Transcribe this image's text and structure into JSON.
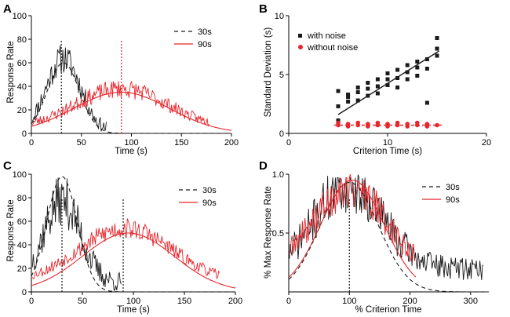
{
  "colors": {
    "black": "#1a1a1a",
    "red": "#e8262c",
    "axis": "#000000"
  },
  "chart_data": [
    {
      "panel": "A",
      "type": "line",
      "xlabel": "Time (s)",
      "ylabel": "Response Rate",
      "xlim": [
        0,
        200
      ],
      "ylim": [
        0,
        100
      ],
      "xticks": [
        0,
        50,
        100,
        150,
        200
      ],
      "yticks": [
        0,
        20,
        40,
        60,
        80,
        100
      ],
      "legend": [
        "30s",
        "90s"
      ],
      "series": [
        {
          "name": "30s",
          "color": "#1a1a1a",
          "dash": "5,4",
          "kind": "gauss_fit",
          "peak": 60,
          "center": 32,
          "sigma": 16,
          "base": 0
        },
        {
          "name": "30s",
          "color": "#1a1a1a",
          "kind": "noisy",
          "peak": 62,
          "center": 32,
          "sigma": 17,
          "base": 2,
          "noise": 13,
          "xrange": [
            1,
            75
          ],
          "seed": 11
        },
        {
          "name": "90s",
          "color": "#e8262c",
          "kind": "gauss_fit",
          "peak": 35,
          "center": 90,
          "sigma": 48,
          "base": 0
        },
        {
          "name": "90s",
          "color": "#e8262c",
          "kind": "noisy",
          "peak": 34,
          "center": 90,
          "sigma": 46,
          "base": 4,
          "noise": 8,
          "xrange": [
            1,
            178
          ],
          "seed": 23
        }
      ],
      "markers": [
        {
          "x": 30,
          "color": "#1a1a1a"
        },
        {
          "x": 90,
          "color": "#e8262c"
        }
      ]
    },
    {
      "panel": "B",
      "type": "scatter",
      "xlabel": "Criterion Time (s)",
      "ylabel": "Standard Deviation (s)",
      "xlim": [
        0,
        20
      ],
      "ylim": [
        0,
        10
      ],
      "xticks": [
        0,
        10,
        20
      ],
      "yticks": [
        0,
        5,
        10
      ],
      "legend": [
        "with noise",
        "without noise"
      ],
      "series": [
        {
          "name": "with noise",
          "color": "#1a1a1a",
          "marker": "square",
          "points": [
            [
              5,
              1.1
            ],
            [
              5,
              2.3
            ],
            [
              5,
              3.6
            ],
            [
              6,
              2.7
            ],
            [
              6,
              3.1
            ],
            [
              6,
              3.3
            ],
            [
              7,
              2.8
            ],
            [
              7,
              3.5
            ],
            [
              7,
              3.9
            ],
            [
              8,
              3.2
            ],
            [
              8,
              3.8
            ],
            [
              8,
              4.3
            ],
            [
              9,
              3.4
            ],
            [
              9,
              4.0
            ],
            [
              9,
              4.6
            ],
            [
              10,
              4.1
            ],
            [
              10,
              4.6
            ],
            [
              10,
              5.1
            ],
            [
              11,
              3.9
            ],
            [
              11,
              4.7
            ],
            [
              11,
              5.4
            ],
            [
              12,
              4.6
            ],
            [
              12,
              5.2
            ],
            [
              12,
              5.8
            ],
            [
              13,
              4.9
            ],
            [
              13,
              5.6
            ],
            [
              13,
              6.1
            ],
            [
              14,
              2.6
            ],
            [
              14,
              5.5
            ],
            [
              14,
              6.3
            ],
            [
              15,
              6.6
            ],
            [
              15,
              7.2
            ],
            [
              15,
              8.1
            ]
          ]
        },
        {
          "name": "without noise",
          "color": "#e8262c",
          "marker": "circle",
          "points": [
            [
              5,
              0.7
            ],
            [
              5,
              0.9
            ],
            [
              6,
              0.6
            ],
            [
              6,
              0.8
            ],
            [
              7,
              0.7
            ],
            [
              7,
              0.9
            ],
            [
              8,
              0.6
            ],
            [
              8,
              0.8
            ],
            [
              9,
              0.7
            ],
            [
              9,
              0.9
            ],
            [
              10,
              0.6
            ],
            [
              10,
              0.8
            ],
            [
              11,
              0.7
            ],
            [
              11,
              0.9
            ],
            [
              12,
              0.6
            ],
            [
              12,
              0.8
            ],
            [
              13,
              0.7
            ],
            [
              13,
              0.9
            ],
            [
              14,
              0.6
            ],
            [
              14,
              0.8
            ],
            [
              15,
              0.7
            ]
          ]
        }
      ],
      "fits": [
        {
          "series": "with noise",
          "color": "#1a1a1a",
          "dash": "",
          "x": [
            5,
            15.2
          ],
          "y": [
            1.6,
            7.0
          ]
        },
        {
          "series": "without noise",
          "color": "#e8262c",
          "dash": "4,3",
          "x": [
            4.6,
            15.6
          ],
          "y": [
            0.7,
            0.7
          ]
        }
      ]
    },
    {
      "panel": "C",
      "type": "line",
      "xlabel": "Time (s)",
      "ylabel": "Response Rate",
      "xlim": [
        0,
        200
      ],
      "ylim": [
        0,
        100
      ],
      "xticks": [
        0,
        50,
        100,
        150,
        200
      ],
      "yticks": [
        0,
        20,
        40,
        60,
        80,
        100
      ],
      "legend": [
        "30s",
        "90s"
      ],
      "series": [
        {
          "name": "30s",
          "color": "#1a1a1a",
          "dash": "5,4",
          "kind": "gauss_fit",
          "peak": 98,
          "center": 30,
          "sigma": 15,
          "base": 0
        },
        {
          "name": "30s",
          "color": "#1a1a1a",
          "kind": "noisy",
          "peak": 70,
          "center": 30,
          "sigma": 18,
          "base": 8,
          "noise": 22,
          "xrange": [
            1,
            88
          ],
          "seed": 37
        },
        {
          "name": "90s",
          "color": "#e8262c",
          "kind": "gauss_fit",
          "peak": 50,
          "center": 95,
          "sigma": 45,
          "base": 0
        },
        {
          "name": "90s",
          "color": "#e8262c",
          "kind": "noisy",
          "peak": 46,
          "center": 92,
          "sigma": 46,
          "base": 8,
          "noise": 9,
          "xrange": [
            1,
            185
          ],
          "seed": 53
        }
      ],
      "markers": [
        {
          "x": 30,
          "color": "#1a1a1a"
        },
        {
          "x": 90,
          "color": "#1a1a1a"
        }
      ]
    },
    {
      "panel": "D",
      "type": "line",
      "xlabel": "% Criterion Time",
      "ylabel": "% Max Response Rate",
      "xlim": [
        0,
        330
      ],
      "ylim": [
        0,
        1.0
      ],
      "xticks": [
        0,
        100,
        200,
        300
      ],
      "yticks": [
        0.5,
        1.0
      ],
      "yticklabels": [
        "0.5",
        "1.0"
      ],
      "legend": [
        "30s",
        "90s"
      ],
      "series": [
        {
          "name": "30s",
          "color": "#1a1a1a",
          "dash": "5,4",
          "kind": "gauss_fit",
          "peak": 0.93,
          "center": 100,
          "sigma": 48,
          "base": 0,
          "xrange": [
            0,
            330
          ]
        },
        {
          "name": "30s",
          "color": "#1a1a1a",
          "kind": "noisy",
          "peak": 0.72,
          "center": 100,
          "sigma": 55,
          "base": 0.2,
          "noise": 0.25,
          "xrange": [
            1,
            322
          ],
          "seed": 71
        },
        {
          "name": "90s",
          "color": "#e8262c",
          "kind": "gauss_fit",
          "peak": 0.95,
          "center": 105,
          "sigma": 52,
          "base": 0,
          "xrange": [
            0,
            210
          ]
        },
        {
          "name": "90s",
          "color": "#e8262c",
          "kind": "noisy",
          "peak": 0.7,
          "center": 100,
          "sigma": 60,
          "base": 0.18,
          "noise": 0.18,
          "xrange": [
            1,
            208
          ],
          "seed": 89
        }
      ],
      "markers": [
        {
          "x": 100,
          "color": "#1a1a1a"
        }
      ]
    }
  ]
}
